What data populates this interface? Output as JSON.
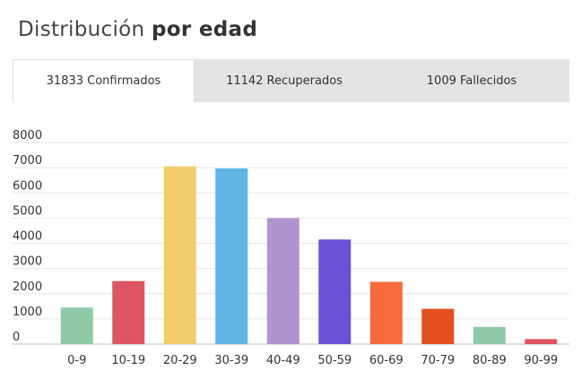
{
  "header": {
    "title_regular": "Distribución",
    "title_bold": "por edad"
  },
  "tabs": [
    {
      "label": "31833 Confirmados",
      "active": true
    },
    {
      "label": "11142 Recuperados",
      "active": false
    },
    {
      "label": "1009 Fallecidos",
      "active": false
    }
  ],
  "chart_data": {
    "type": "bar",
    "categories": [
      "0-9",
      "10-19",
      "20-29",
      "30-39",
      "40-49",
      "50-59",
      "60-69",
      "70-79",
      "80-89",
      "90-99"
    ],
    "values": [
      1450,
      2500,
      7050,
      6970,
      5000,
      4150,
      2470,
      1400,
      680,
      200
    ],
    "colors": [
      "#8fc9a8",
      "#dd5560",
      "#f2cc6a",
      "#5fb6e6",
      "#b193d0",
      "#6b50d8",
      "#f96a3a",
      "#e4501f",
      "#8fc9a8",
      "#dd5560"
    ],
    "ylim": [
      0,
      8000
    ],
    "yticks": [
      0,
      1000,
      2000,
      3000,
      4000,
      5000,
      6000,
      7000,
      8000
    ],
    "grid": true,
    "title": "",
    "xlabel": "",
    "ylabel": ""
  }
}
